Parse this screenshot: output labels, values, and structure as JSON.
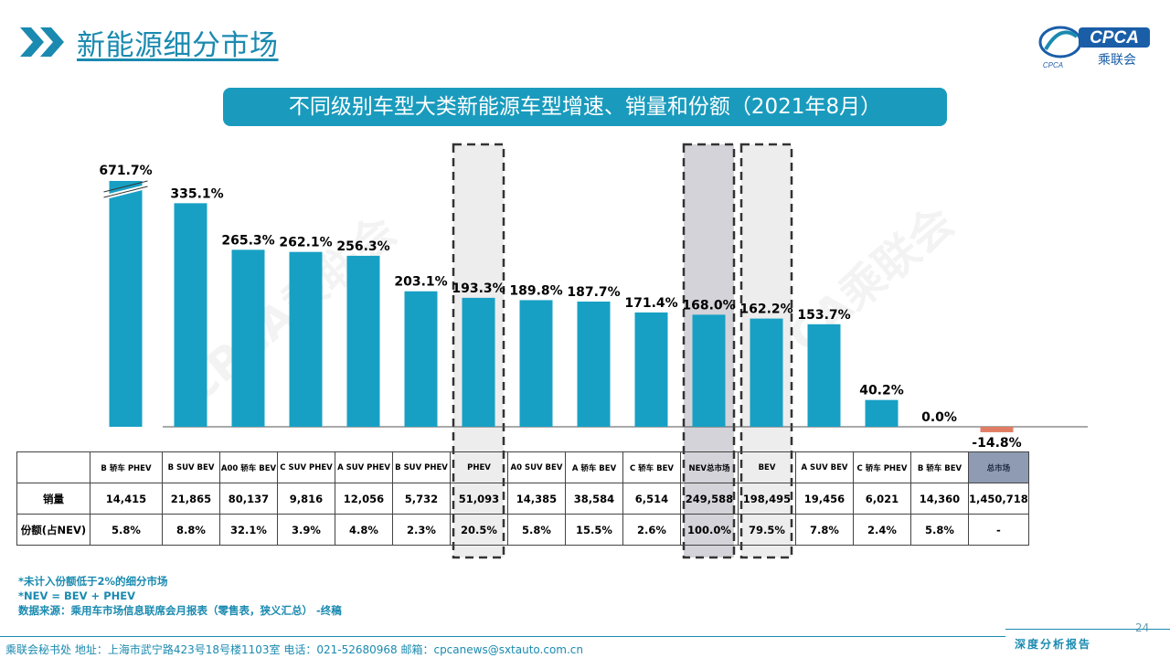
{
  "header": {
    "title": "新能源细分市场"
  },
  "logo": {
    "text": "CPCA",
    "subtext": "乘联会",
    "small": "CPCA"
  },
  "banner": {
    "text": "不同级别车型大类新能源车型增速、销量和份额（2021年8月）"
  },
  "watermark": {
    "text": "CPCA乘联会"
  },
  "colors": {
    "accent": "#1a8ab0",
    "bar": "#17a0c4",
    "negative": "#e07d64",
    "highlight_gray": "#d3d3d9",
    "highlight_light": "#ededed",
    "total_cell": "#8e9bb3"
  },
  "chart_data": {
    "type": "bar",
    "title": "不同级别车型大类新能源车型增速、销量和份额（2021年8月）",
    "categories": [
      "B 轿车 PHEV",
      "B SUV BEV",
      "A00 轿车 BEV",
      "C SUV PHEV",
      "A SUV PHEV",
      "B SUV PHEV",
      "PHEV",
      "A0 SUV BEV",
      "A 轿车 BEV",
      "C 轿车 BEV",
      "NEV总市场",
      "BEV",
      "A SUV BEV",
      "C 轿车 PHEV",
      "B 轿车 BEV",
      "总市场"
    ],
    "values": [
      671.7,
      335.1,
      265.3,
      262.1,
      256.3,
      203.1,
      193.3,
      189.8,
      187.7,
      171.4,
      168.0,
      162.2,
      153.7,
      40.2,
      0.0,
      -14.8
    ],
    "labels": [
      "671.7%",
      "335.1%",
      "265.3%",
      "262.1%",
      "256.3%",
      "203.1%",
      "193.3%",
      "189.8%",
      "187.7%",
      "171.4%",
      "168.0%",
      "162.2%",
      "153.7%",
      "40.2%",
      "0.0%",
      "-14.8%"
    ],
    "axis_break": "first bar truncated",
    "ylim": [
      -20,
      360
    ],
    "highlighted": {
      "PHEV": "dashed-light",
      "NEV总市场": "dashed-gray",
      "BEV": "dashed-light"
    },
    "table": {
      "rows": [
        {
          "label": "销量",
          "values": [
            "14,415",
            "21,865",
            "80,137",
            "9,816",
            "12,056",
            "5,732",
            "51,093",
            "14,385",
            "38,584",
            "6,514",
            "249,588",
            "198,495",
            "19,456",
            "6,021",
            "14,360",
            "1,450,718"
          ]
        },
        {
          "label": "份额(占NEV)",
          "values": [
            "5.8%",
            "8.8%",
            "32.1%",
            "3.9%",
            "4.8%",
            "2.3%",
            "20.5%",
            "5.8%",
            "15.5%",
            "2.6%",
            "100.0%",
            "79.5%",
            "7.8%",
            "2.4%",
            "5.8%",
            "-"
          ]
        }
      ]
    }
  },
  "notes": [
    "*未计入份额低于2%的细分市场",
    "*NEV = BEV + PHEV",
    "数据来源：乘用车市场信息联席会月报表（零售表，狭义汇总）   -终稿"
  ],
  "page_number": "24",
  "footer": "乘联会秘书处    地址：上海市武宁路423号18号楼1103室    电话：021-52680968    邮箱：cpcanews@sxtauto.com.cn",
  "report_label": "深度分析报告"
}
